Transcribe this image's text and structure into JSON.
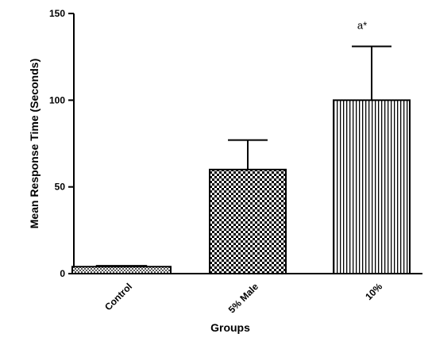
{
  "chart_data": {
    "type": "bar",
    "xlabel": "Groups",
    "ylabel": "Mean Response Time (Seconds)",
    "ylim": [
      0,
      150
    ],
    "yticks": [
      0,
      50,
      100,
      150
    ],
    "categories": [
      "Control",
      "5% Male",
      "10%"
    ],
    "values": [
      4,
      60,
      100
    ],
    "errors": [
      0.5,
      17,
      31
    ],
    "annotations": [
      "",
      "",
      "a*"
    ],
    "grid": false,
    "legend": "none"
  }
}
